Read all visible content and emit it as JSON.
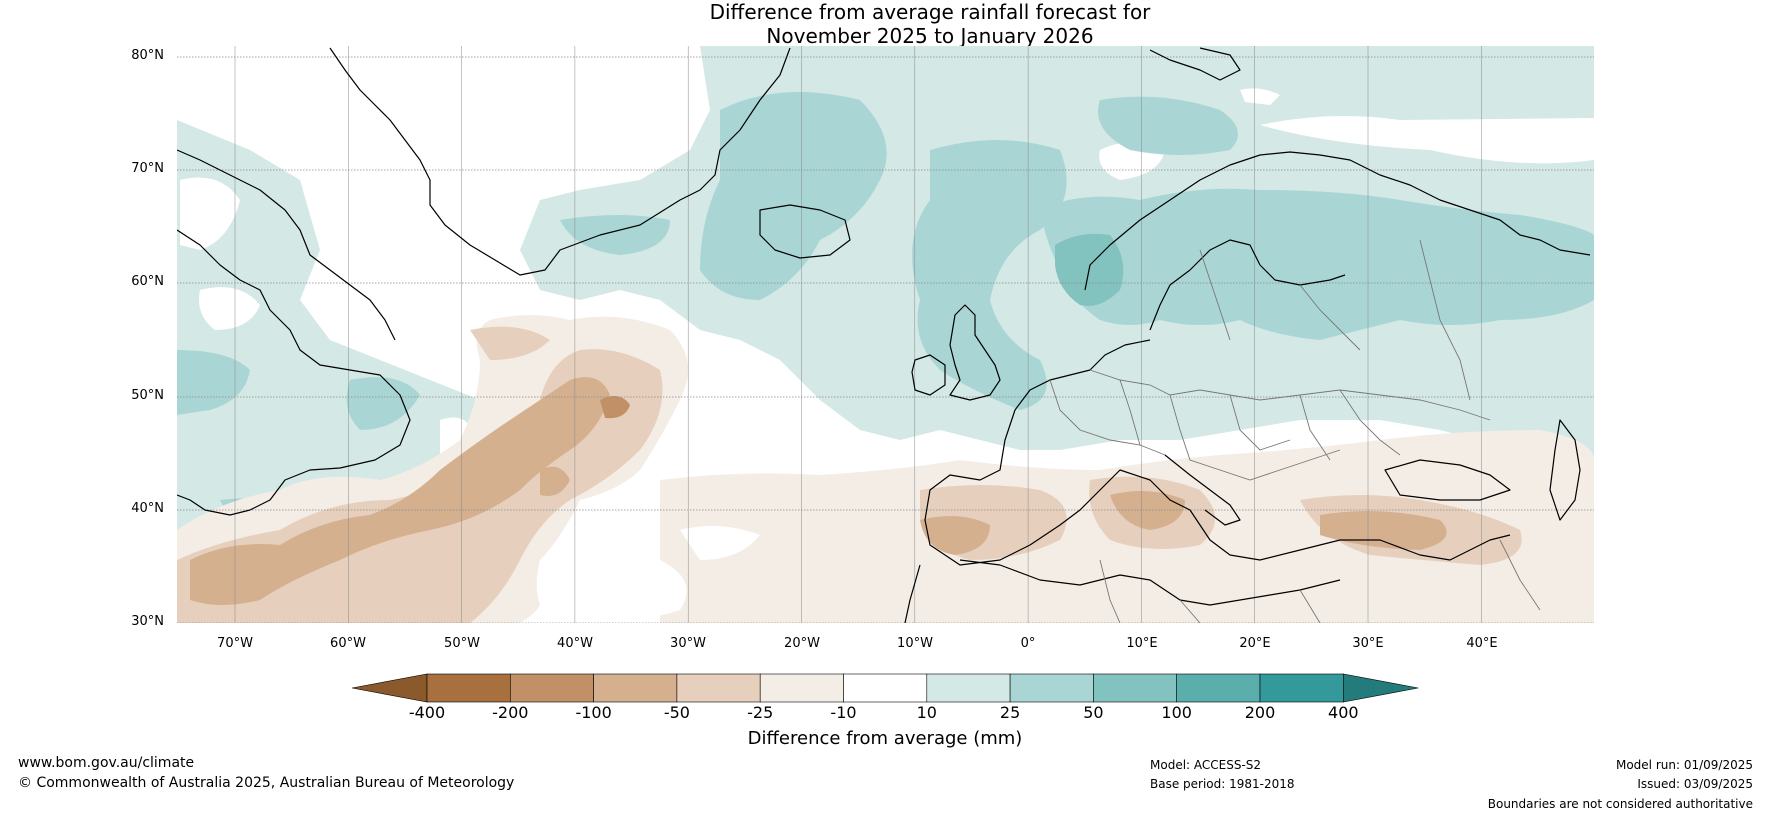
{
  "title": {
    "line1": "Difference from average rainfall forecast for",
    "line2": "November 2025 to January 2026"
  },
  "lat_labels": [
    "80°N",
    "70°N",
    "60°N",
    "50°N",
    "40°N",
    "30°N"
  ],
  "lon_labels": [
    "70°W",
    "60°W",
    "50°W",
    "40°W",
    "30°W",
    "20°W",
    "10°W",
    "0°",
    "10°E",
    "20°E",
    "30°E",
    "40°E"
  ],
  "legend": {
    "title": "Difference from average (mm)",
    "ticks": [
      "-400",
      "-200",
      "-100",
      "-50",
      "-25",
      "-10",
      "10",
      "25",
      "50",
      "100",
      "200",
      "400"
    ],
    "colors": [
      "#8b5a2b",
      "#a8703f",
      "#c19066",
      "#d4b08f",
      "#e6d0bd",
      "#f3ede6",
      "#ffffff",
      "#d4e8e6",
      "#a9d6d4",
      "#82c2bf",
      "#5aaeac",
      "#33999a",
      "#237b7b"
    ]
  },
  "footer": {
    "website": "www.bom.gov.au/climate",
    "copyright": "© Commonwealth of Australia 2025, Australian Bureau of Meteorology",
    "model": "Model: ACCESS-S2",
    "base_period": "Base period: 1981-2018",
    "model_run": "Model run: 01/09/2025",
    "issued": "Issued: 03/09/2025",
    "disclaimer": "Boundaries are not considered authoritative"
  }
}
